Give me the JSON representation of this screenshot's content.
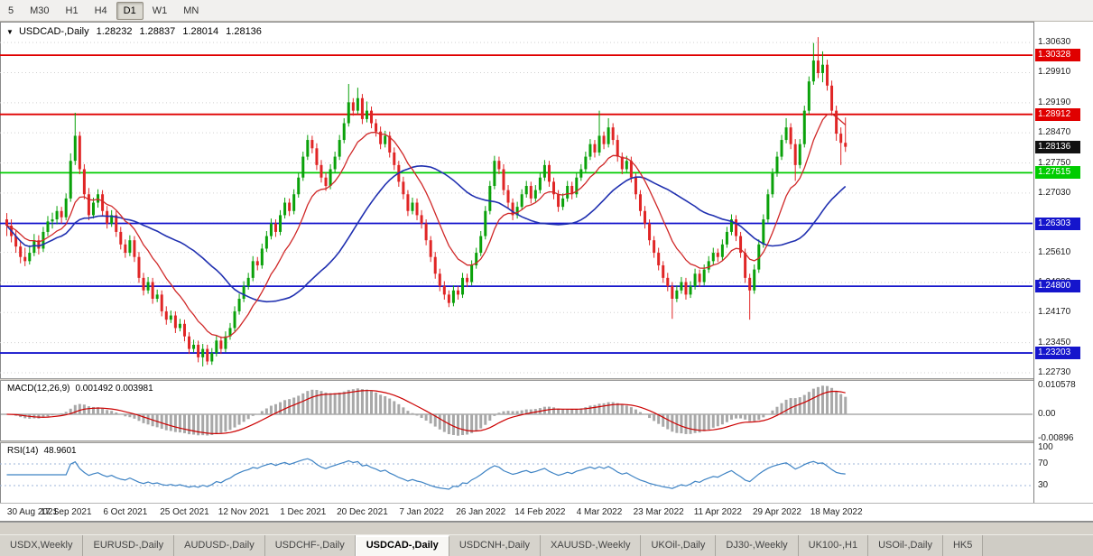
{
  "toolbar": {
    "timeframes": [
      {
        "label": "5",
        "active": false
      },
      {
        "label": "M30",
        "active": false
      },
      {
        "label": "H1",
        "active": false
      },
      {
        "label": "H4",
        "active": false
      },
      {
        "label": "D1",
        "active": true
      },
      {
        "label": "W1",
        "active": false
      },
      {
        "label": "MN",
        "active": false
      }
    ]
  },
  "chart_data": {
    "type": "candlestick",
    "symbol": "USDCAD-,Daily",
    "ohlc": {
      "open": "1.28232",
      "high": "1.28837",
      "low": "1.28014",
      "close": "1.28136"
    },
    "y_axis_labels": [
      "1.30630",
      "1.29910",
      "1.29190",
      "1.28470",
      "1.27750",
      "1.27030",
      "1.26310",
      "1.25610",
      "1.24890",
      "1.24170",
      "1.23450",
      "1.22730"
    ],
    "y_range": [
      1.226,
      1.3113
    ],
    "price_lines": [
      {
        "value": 1.30328,
        "label": "1.30328",
        "color": "#e00000"
      },
      {
        "value": 1.28912,
        "label": "1.28912",
        "color": "#e00000"
      },
      {
        "value": 1.27515,
        "label": "1.27515",
        "color": "#00cc00"
      },
      {
        "value": 1.26303,
        "label": "1.26303",
        "color": "#1515cc"
      },
      {
        "value": 1.248,
        "label": "1.24800",
        "color": "#1515cc"
      },
      {
        "value": 1.23203,
        "label": "1.23203",
        "color": "#1515cc"
      }
    ],
    "current_price": {
      "value": 1.28136,
      "label": "1.28136",
      "color": "#111111"
    },
    "x_labels": [
      "30 Aug 2021",
      "17 Sep 2021",
      "6 Oct 2021",
      "25 Oct 2021",
      "12 Nov 2021",
      "1 Dec 2021",
      "20 Dec 2021",
      "7 Jan 2022",
      "26 Jan 2022",
      "14 Feb 2022",
      "4 Mar 2022",
      "23 Mar 2022",
      "11 Apr 2022",
      "29 Apr 2022",
      "18 May 2022"
    ],
    "x_label_bar_indices": [
      0,
      13,
      26,
      39,
      52,
      65,
      78,
      91,
      104,
      117,
      130,
      143,
      156,
      169,
      182
    ],
    "macd": {
      "label": "MACD(12,26,9)",
      "value_text": "0.001492 0.003981",
      "axis_labels": [
        "0.010578",
        "0.00",
        "-0.00896"
      ],
      "params": [
        12,
        26,
        9
      ]
    },
    "rsi": {
      "label": "RSI(14)",
      "value_text": "48.9601",
      "axis_labels": [
        "100",
        "70",
        "30"
      ],
      "period": 14,
      "levels": [
        70,
        30
      ]
    },
    "candles": [
      [
        1.264,
        1.2655,
        1.26,
        1.2625
      ],
      [
        1.2625,
        1.264,
        1.2585,
        1.26
      ],
      [
        1.26,
        1.2615,
        1.256,
        1.2575
      ],
      [
        1.2575,
        1.259,
        1.2535,
        1.255
      ],
      [
        1.255,
        1.2572,
        1.2528,
        1.254
      ],
      [
        1.254,
        1.2578,
        1.2532,
        1.256
      ],
      [
        1.256,
        1.2605,
        1.2552,
        1.259
      ],
      [
        1.259,
        1.2602,
        1.2556,
        1.257
      ],
      [
        1.257,
        1.2622,
        1.2562,
        1.261
      ],
      [
        1.261,
        1.2648,
        1.26,
        1.2635
      ],
      [
        1.2635,
        1.2656,
        1.2618,
        1.264
      ],
      [
        1.264,
        1.2672,
        1.2628,
        1.266
      ],
      [
        1.266,
        1.267,
        1.263,
        1.2645
      ],
      [
        1.2645,
        1.2702,
        1.2638,
        1.269
      ],
      [
        1.269,
        1.2798,
        1.2682,
        1.278
      ],
      [
        1.278,
        1.2895,
        1.277,
        1.284
      ],
      [
        1.284,
        1.285,
        1.2748,
        1.276
      ],
      [
        1.276,
        1.2772,
        1.2688,
        1.27
      ],
      [
        1.27,
        1.2715,
        1.2638,
        1.265
      ],
      [
        1.265,
        1.2692,
        1.2642,
        1.268
      ],
      [
        1.268,
        1.2712,
        1.2668,
        1.27
      ],
      [
        1.27,
        1.271,
        1.2648,
        1.266
      ],
      [
        1.266,
        1.2672,
        1.2618,
        1.263
      ],
      [
        1.263,
        1.2662,
        1.2622,
        1.265
      ],
      [
        1.265,
        1.266,
        1.2598,
        1.261
      ],
      [
        1.261,
        1.2622,
        1.2568,
        1.258
      ],
      [
        1.258,
        1.2592,
        1.2548,
        1.256
      ],
      [
        1.256,
        1.2602,
        1.2552,
        1.259
      ],
      [
        1.259,
        1.26,
        1.2538,
        1.255
      ],
      [
        1.255,
        1.2562,
        1.2488,
        1.25
      ],
      [
        1.25,
        1.2512,
        1.2458,
        1.247
      ],
      [
        1.247,
        1.2502,
        1.2462,
        1.249
      ],
      [
        1.249,
        1.25,
        1.2438,
        1.245
      ],
      [
        1.245,
        1.2472,
        1.2442,
        1.246
      ],
      [
        1.246,
        1.247,
        1.2408,
        1.242
      ],
      [
        1.242,
        1.2432,
        1.2388,
        1.24
      ],
      [
        1.24,
        1.2422,
        1.2392,
        1.241
      ],
      [
        1.241,
        1.242,
        1.2368,
        1.238
      ],
      [
        1.238,
        1.2402,
        1.2372,
        1.239
      ],
      [
        1.239,
        1.24,
        1.2348,
        1.236
      ],
      [
        1.236,
        1.237,
        1.2318,
        1.233
      ],
      [
        1.233,
        1.2352,
        1.2322,
        1.234
      ],
      [
        1.234,
        1.235,
        1.2298,
        1.231
      ],
      [
        1.231,
        1.2342,
        1.2288,
        1.233
      ],
      [
        1.233,
        1.234,
        1.2292,
        1.23
      ],
      [
        1.23,
        1.2332,
        1.2292,
        1.232
      ],
      [
        1.232,
        1.2362,
        1.2312,
        1.235
      ],
      [
        1.235,
        1.236,
        1.2318,
        1.233
      ],
      [
        1.233,
        1.2372,
        1.2322,
        1.236
      ],
      [
        1.236,
        1.2392,
        1.2352,
        1.238
      ],
      [
        1.238,
        1.2432,
        1.2372,
        1.242
      ],
      [
        1.242,
        1.2462,
        1.2412,
        1.245
      ],
      [
        1.245,
        1.2492,
        1.2442,
        1.248
      ],
      [
        1.248,
        1.2512,
        1.2472,
        1.25
      ],
      [
        1.25,
        1.2552,
        1.2492,
        1.254
      ],
      [
        1.254,
        1.255,
        1.2518,
        1.253
      ],
      [
        1.253,
        1.2582,
        1.2522,
        1.257
      ],
      [
        1.257,
        1.2612,
        1.2562,
        1.26
      ],
      [
        1.26,
        1.2642,
        1.2592,
        1.263
      ],
      [
        1.263,
        1.264,
        1.2598,
        1.261
      ],
      [
        1.261,
        1.2662,
        1.2602,
        1.265
      ],
      [
        1.265,
        1.2692,
        1.2642,
        1.268
      ],
      [
        1.268,
        1.269,
        1.2648,
        1.266
      ],
      [
        1.266,
        1.2712,
        1.2652,
        1.27
      ],
      [
        1.27,
        1.2752,
        1.2692,
        1.274
      ],
      [
        1.274,
        1.2802,
        1.2732,
        1.279
      ],
      [
        1.279,
        1.2842,
        1.2782,
        1.283
      ],
      [
        1.283,
        1.284,
        1.2798,
        1.281
      ],
      [
        1.281,
        1.2822,
        1.2758,
        1.277
      ],
      [
        1.277,
        1.2782,
        1.2728,
        1.274
      ],
      [
        1.274,
        1.2752,
        1.2708,
        1.272
      ],
      [
        1.272,
        1.2772,
        1.2712,
        1.276
      ],
      [
        1.276,
        1.2802,
        1.2752,
        1.279
      ],
      [
        1.279,
        1.2842,
        1.2782,
        1.283
      ],
      [
        1.283,
        1.2882,
        1.2822,
        1.287
      ],
      [
        1.287,
        1.2964,
        1.2862,
        1.292
      ],
      [
        1.292,
        1.293,
        1.2888,
        1.29
      ],
      [
        1.29,
        1.2955,
        1.2892,
        1.293
      ],
      [
        1.293,
        1.294,
        1.2868,
        1.288
      ],
      [
        1.288,
        1.2922,
        1.2872,
        1.29
      ],
      [
        1.29,
        1.291,
        1.2858,
        1.287
      ],
      [
        1.287,
        1.288,
        1.2838,
        1.285
      ],
      [
        1.285,
        1.2862,
        1.2808,
        1.282
      ],
      [
        1.282,
        1.2852,
        1.2812,
        1.284
      ],
      [
        1.284,
        1.285,
        1.2788,
        1.28
      ],
      [
        1.28,
        1.2812,
        1.2758,
        1.277
      ],
      [
        1.277,
        1.278,
        1.2718,
        1.273
      ],
      [
        1.273,
        1.2742,
        1.2688,
        1.27
      ],
      [
        1.27,
        1.271,
        1.2648,
        1.266
      ],
      [
        1.266,
        1.2692,
        1.2652,
        1.268
      ],
      [
        1.268,
        1.269,
        1.2638,
        1.265
      ],
      [
        1.265,
        1.2662,
        1.2618,
        1.263
      ],
      [
        1.263,
        1.264,
        1.2578,
        1.259
      ],
      [
        1.259,
        1.26,
        1.2538,
        1.255
      ],
      [
        1.255,
        1.2562,
        1.2498,
        1.251
      ],
      [
        1.251,
        1.2522,
        1.2468,
        1.248
      ],
      [
        1.248,
        1.2492,
        1.2448,
        1.246
      ],
      [
        1.246,
        1.247,
        1.243,
        1.244
      ],
      [
        1.244,
        1.2482,
        1.2432,
        1.247
      ],
      [
        1.247,
        1.248,
        1.2448,
        1.246
      ],
      [
        1.246,
        1.2512,
        1.2452,
        1.25
      ],
      [
        1.25,
        1.251,
        1.2478,
        1.249
      ],
      [
        1.249,
        1.2542,
        1.2482,
        1.253
      ],
      [
        1.253,
        1.2572,
        1.2522,
        1.256
      ],
      [
        1.256,
        1.2612,
        1.2552,
        1.26
      ],
      [
        1.26,
        1.2672,
        1.2592,
        1.266
      ],
      [
        1.266,
        1.2732,
        1.2652,
        1.272
      ],
      [
        1.272,
        1.2792,
        1.2712,
        1.278
      ],
      [
        1.278,
        1.279,
        1.2748,
        1.276
      ],
      [
        1.276,
        1.2772,
        1.2698,
        1.271
      ],
      [
        1.271,
        1.2722,
        1.2668,
        1.268
      ],
      [
        1.268,
        1.269,
        1.2638,
        1.265
      ],
      [
        1.265,
        1.2682,
        1.2642,
        1.267
      ],
      [
        1.267,
        1.2712,
        1.2662,
        1.27
      ],
      [
        1.27,
        1.2732,
        1.2692,
        1.272
      ],
      [
        1.272,
        1.273,
        1.2678,
        1.269
      ],
      [
        1.269,
        1.2722,
        1.2682,
        1.271
      ],
      [
        1.271,
        1.2752,
        1.2702,
        1.274
      ],
      [
        1.274,
        1.2782,
        1.2732,
        1.277
      ],
      [
        1.277,
        1.278,
        1.2718,
        1.273
      ],
      [
        1.273,
        1.274,
        1.2688,
        1.27
      ],
      [
        1.27,
        1.271,
        1.2658,
        1.267
      ],
      [
        1.267,
        1.2702,
        1.2662,
        1.269
      ],
      [
        1.269,
        1.2732,
        1.2682,
        1.272
      ],
      [
        1.272,
        1.273,
        1.2688,
        1.27
      ],
      [
        1.27,
        1.2752,
        1.2692,
        1.274
      ],
      [
        1.274,
        1.2772,
        1.2732,
        1.276
      ],
      [
        1.276,
        1.2802,
        1.2752,
        1.279
      ],
      [
        1.279,
        1.2832,
        1.2782,
        1.282
      ],
      [
        1.282,
        1.283,
        1.2788,
        1.28
      ],
      [
        1.28,
        1.29,
        1.2792,
        1.284
      ],
      [
        1.284,
        1.285,
        1.2808,
        1.282
      ],
      [
        1.282,
        1.2882,
        1.2812,
        1.286
      ],
      [
        1.286,
        1.287,
        1.2818,
        1.283
      ],
      [
        1.283,
        1.2842,
        1.2778,
        1.279
      ],
      [
        1.279,
        1.28,
        1.2748,
        1.276
      ],
      [
        1.276,
        1.2792,
        1.2752,
        1.278
      ],
      [
        1.278,
        1.279,
        1.2728,
        1.274
      ],
      [
        1.274,
        1.275,
        1.2688,
        1.27
      ],
      [
        1.27,
        1.271,
        1.2648,
        1.266
      ],
      [
        1.266,
        1.2672,
        1.2618,
        1.263
      ],
      [
        1.263,
        1.264,
        1.2578,
        1.259
      ],
      [
        1.259,
        1.26,
        1.2548,
        1.256
      ],
      [
        1.256,
        1.2572,
        1.2518,
        1.253
      ],
      [
        1.253,
        1.254,
        1.2488,
        1.25
      ],
      [
        1.25,
        1.2512,
        1.2468,
        1.248
      ],
      [
        1.248,
        1.249,
        1.2402,
        1.245
      ],
      [
        1.245,
        1.2482,
        1.2442,
        1.247
      ],
      [
        1.247,
        1.2502,
        1.2462,
        1.249
      ],
      [
        1.249,
        1.25,
        1.2448,
        1.246
      ],
      [
        1.246,
        1.2492,
        1.2452,
        1.248
      ],
      [
        1.248,
        1.2522,
        1.2472,
        1.251
      ],
      [
        1.251,
        1.252,
        1.2478,
        1.249
      ],
      [
        1.249,
        1.2532,
        1.2482,
        1.252
      ],
      [
        1.252,
        1.2552,
        1.2512,
        1.254
      ],
      [
        1.254,
        1.2572,
        1.2532,
        1.256
      ],
      [
        1.256,
        1.257,
        1.2538,
        1.255
      ],
      [
        1.255,
        1.2592,
        1.2542,
        1.258
      ],
      [
        1.258,
        1.2622,
        1.2572,
        1.261
      ],
      [
        1.261,
        1.2652,
        1.2602,
        1.264
      ],
      [
        1.264,
        1.265,
        1.2588,
        1.26
      ],
      [
        1.26,
        1.261,
        1.2548,
        1.256
      ],
      [
        1.256,
        1.257,
        1.2488,
        1.25
      ],
      [
        1.25,
        1.251,
        1.24,
        1.247
      ],
      [
        1.247,
        1.2532,
        1.2462,
        1.252
      ],
      [
        1.252,
        1.2592,
        1.2512,
        1.258
      ],
      [
        1.258,
        1.2652,
        1.2572,
        1.264
      ],
      [
        1.264,
        1.2712,
        1.2632,
        1.27
      ],
      [
        1.27,
        1.2762,
        1.2692,
        1.275
      ],
      [
        1.275,
        1.2802,
        1.2742,
        1.279
      ],
      [
        1.279,
        1.2842,
        1.2782,
        1.283
      ],
      [
        1.283,
        1.2882,
        1.2822,
        1.286
      ],
      [
        1.286,
        1.287,
        1.2808,
        1.282
      ],
      [
        1.282,
        1.2832,
        1.2732,
        1.277
      ],
      [
        1.277,
        1.2832,
        1.2762,
        1.282
      ],
      [
        1.282,
        1.2912,
        1.2812,
        1.29
      ],
      [
        1.29,
        1.2982,
        1.2892,
        1.297
      ],
      [
        1.297,
        1.3062,
        1.2962,
        1.302
      ],
      [
        1.302,
        1.3076,
        1.2978,
        1.299
      ],
      [
        1.299,
        1.3042,
        1.2968,
        1.301
      ],
      [
        1.301,
        1.3022,
        1.2948,
        1.296
      ],
      [
        1.296,
        1.2972,
        1.2888,
        1.29
      ],
      [
        1.29,
        1.2912,
        1.2828,
        1.2845
      ],
      [
        1.2845,
        1.286,
        1.277,
        1.2823
      ],
      [
        1.28232,
        1.28837,
        1.28014,
        1.28136
      ]
    ]
  },
  "colors": {
    "candle_up": "#0aa10a",
    "candle_down": "#e02525",
    "ma_fast": "#d02828",
    "ma_slow": "#2030b0",
    "macd_hist": "#a8a8a8",
    "macd_signal": "#cc0000",
    "rsi_line": "#3e83c4",
    "grid": "#d0d0d0",
    "rsi_level": "#9db6d9"
  },
  "tabs": [
    {
      "label": "USDX,Weekly",
      "active": false
    },
    {
      "label": "EURUSD-,Daily",
      "active": false
    },
    {
      "label": "AUDUSD-,Daily",
      "active": false
    },
    {
      "label": "USDCHF-,Daily",
      "active": false
    },
    {
      "label": "USDCAD-,Daily",
      "active": true
    },
    {
      "label": "USDCNH-,Daily",
      "active": false
    },
    {
      "label": "XAUUSD-,Weekly",
      "active": false
    },
    {
      "label": "UKOil-,Daily",
      "active": false
    },
    {
      "label": "DJ30-,Weekly",
      "active": false
    },
    {
      "label": "UK100-,H1",
      "active": false
    },
    {
      "label": "USOil-,Daily",
      "active": false
    },
    {
      "label": "HK5",
      "active": false
    }
  ]
}
